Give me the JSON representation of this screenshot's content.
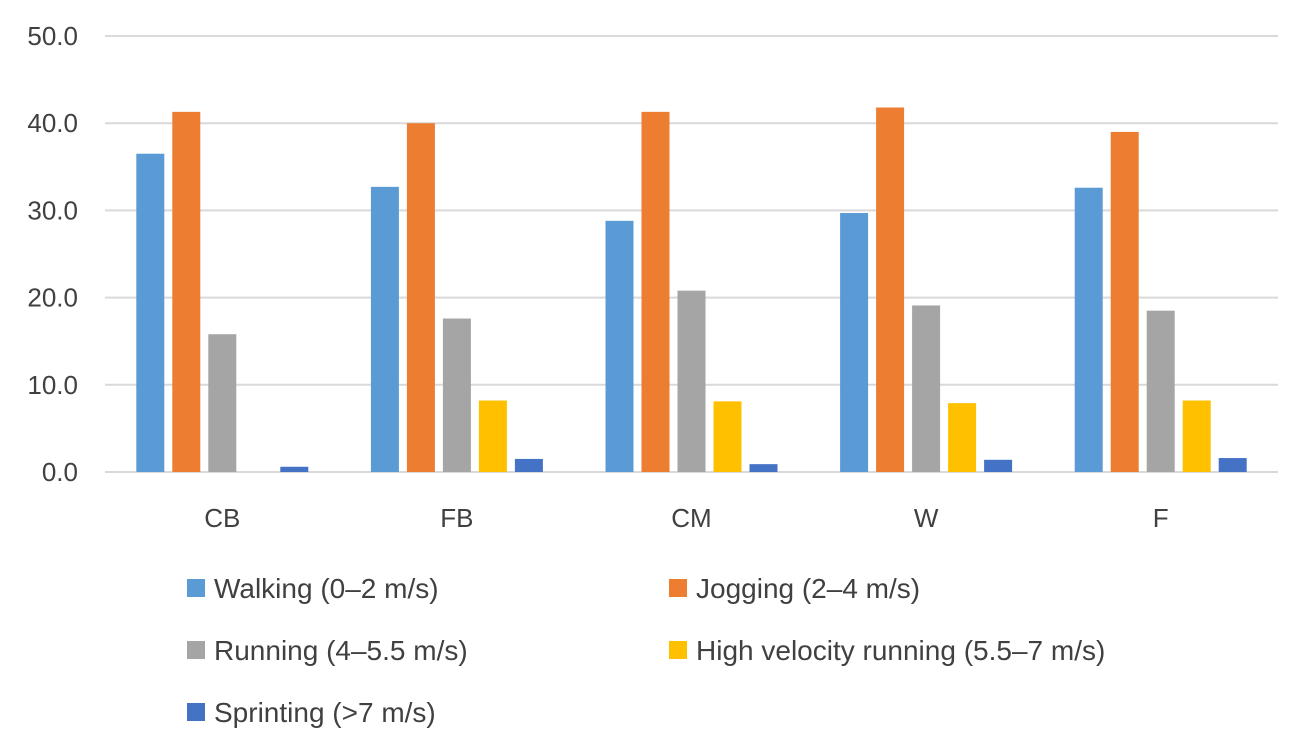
{
  "chart_data": {
    "type": "bar",
    "title": "",
    "xlabel": "",
    "ylabel": "",
    "categories": [
      "CB",
      "FB",
      "CM",
      "W",
      "F"
    ],
    "ylim": [
      0,
      50
    ],
    "yticks": [
      0,
      10,
      20,
      30,
      40,
      50
    ],
    "ytick_labels": [
      "0.0",
      "10.0",
      "20.0",
      "30.0",
      "40.0",
      "50.0"
    ],
    "grid": true,
    "legend_position": "bottom",
    "series": [
      {
        "name": "Walking (0–2 m/s)",
        "color": "#5b9bd5",
        "values": [
          36.5,
          32.7,
          28.8,
          29.7,
          32.6
        ]
      },
      {
        "name": "Jogging (2–4 m/s)",
        "color": "#ed7d31",
        "values": [
          41.3,
          40.0,
          41.3,
          41.8,
          39.0
        ]
      },
      {
        "name": "Running (4–5.5 m/s)",
        "color": "#a5a5a5",
        "values": [
          15.8,
          17.6,
          20.8,
          19.1,
          18.5
        ]
      },
      {
        "name": "High velocity running (5.5–7 m/s)",
        "color": "#ffc000",
        "values": [
          0,
          8.2,
          8.1,
          7.9,
          8.2
        ]
      },
      {
        "name": "Sprinting (>7 m/s)",
        "color": "#4472c4",
        "values": [
          0.6,
          1.5,
          0.9,
          1.4,
          1.6
        ]
      }
    ]
  }
}
